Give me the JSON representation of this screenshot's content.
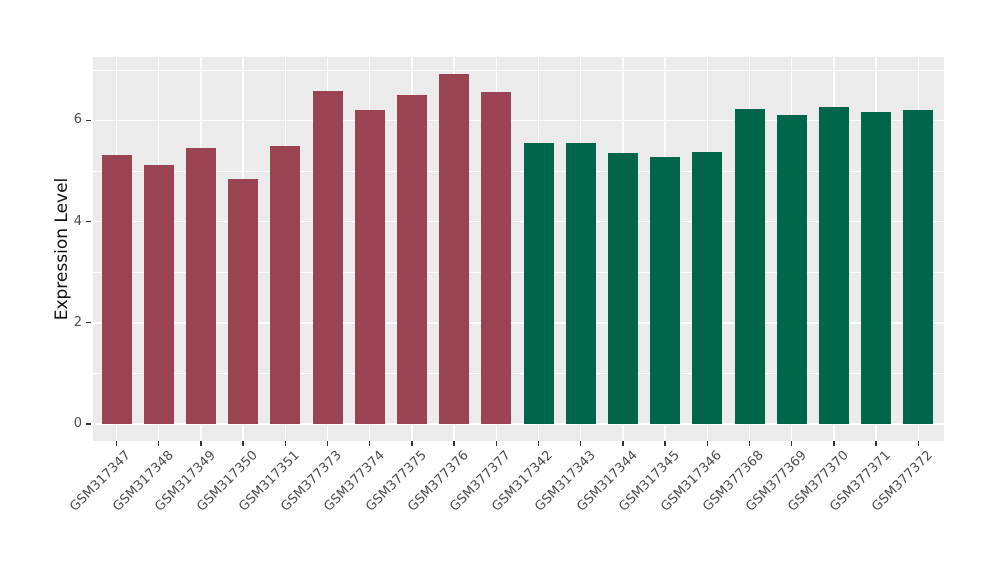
{
  "figure": {
    "background": "#FFFFFF",
    "panel_background": "#EBEBEB",
    "grid_color": "#FFFFFF",
    "tick_mark_color": "#333333",
    "tick_label_color": "#4D4D4D",
    "axis_title_color": "#111111"
  },
  "chart_data": {
    "type": "bar",
    "title": "",
    "xlabel": "",
    "ylabel": "Expression Level",
    "ylim": [
      0,
      7.25
    ],
    "yticks": [
      0,
      2,
      4,
      6
    ],
    "yticks_minor": [
      1,
      3,
      5,
      7
    ],
    "grid": true,
    "legend": "none",
    "x_label_angle": 45,
    "categories": [
      "GSM317347",
      "GSM317348",
      "GSM317349",
      "GSM317350",
      "GSM317351",
      "GSM377373",
      "GSM377374",
      "GSM377375",
      "GSM377376",
      "GSM377377",
      "GSM317342",
      "GSM317343",
      "GSM317344",
      "GSM317345",
      "GSM317346",
      "GSM377368",
      "GSM377369",
      "GSM377370",
      "GSM377371",
      "GSM377372"
    ],
    "values": [
      5.32,
      5.11,
      5.45,
      4.85,
      5.49,
      6.59,
      6.2,
      6.5,
      6.92,
      6.57,
      5.55,
      5.56,
      5.36,
      5.28,
      5.37,
      6.23,
      6.11,
      6.26,
      6.16,
      6.2
    ],
    "bar_colors": [
      "#9A4453",
      "#9A4453",
      "#9A4453",
      "#9A4453",
      "#9A4453",
      "#9A4453",
      "#9A4453",
      "#9A4453",
      "#9A4453",
      "#9A4453",
      "#00664A",
      "#00664A",
      "#00664A",
      "#00664A",
      "#00664A",
      "#00664A",
      "#00664A",
      "#00664A",
      "#00664A",
      "#00664A"
    ]
  }
}
